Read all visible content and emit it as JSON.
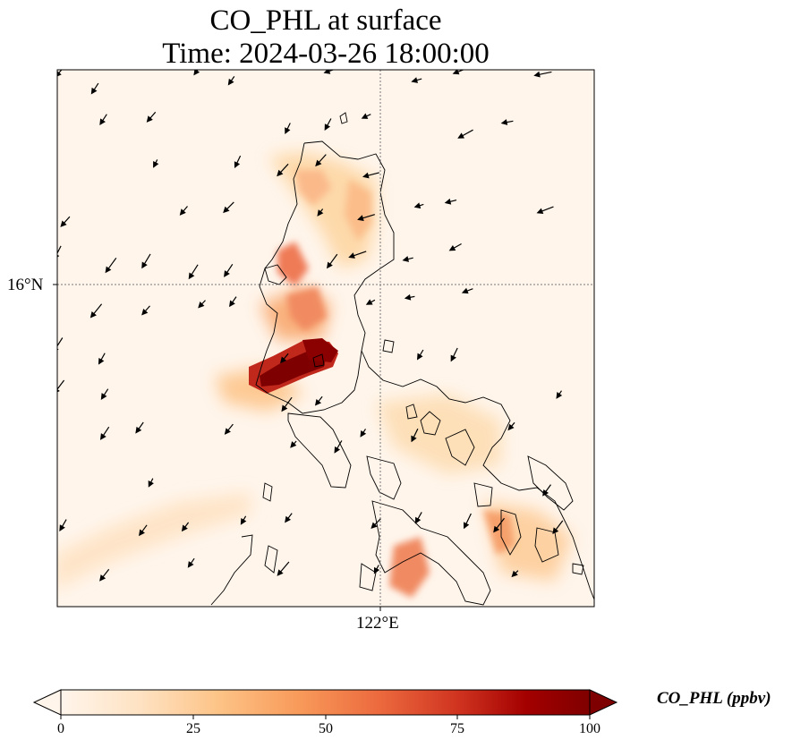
{
  "title": {
    "line1": "CO_PHL at surface",
    "line2": "Time: 2024-03-26 18:00:00"
  },
  "map": {
    "lat_label": "16°N",
    "lon_label": "122°E",
    "field_colors": [
      "#fff5eb",
      "#fdd49e",
      "#f5a36b",
      "#e8603c",
      "#b30000",
      "#7f0000"
    ]
  },
  "colorbar": {
    "label": "CO_PHL (ppbv)",
    "min": 0,
    "max": 100,
    "ticks": [
      "0",
      "25",
      "50",
      "75",
      "100"
    ],
    "extend": "both",
    "stops": [
      "#fff5eb",
      "#fee2c2",
      "#fdc386",
      "#f89a5a",
      "#ec6a3e",
      "#d03420",
      "#a30000",
      "#7f0000"
    ]
  }
}
